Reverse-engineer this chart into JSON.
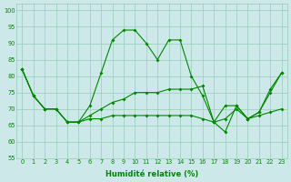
{
  "title": "",
  "xlabel": "Humidité relative (%)",
  "ylabel": "",
  "xlim": [
    -0.5,
    23.5
  ],
  "ylim": [
    55,
    102
  ],
  "yticks": [
    55,
    60,
    65,
    70,
    75,
    80,
    85,
    90,
    95,
    100
  ],
  "xticks": [
    0,
    1,
    2,
    3,
    4,
    5,
    6,
    7,
    8,
    9,
    10,
    11,
    12,
    13,
    14,
    15,
    16,
    17,
    18,
    19,
    20,
    21,
    22,
    23
  ],
  "background_color": "#cce8e8",
  "grid_color": "#99ccbb",
  "line_color": "#008800",
  "line1": [
    82,
    74,
    70,
    70,
    66,
    66,
    71,
    81,
    91,
    94,
    94,
    90,
    85,
    91,
    91,
    80,
    74,
    66,
    63,
    71,
    67,
    69,
    75,
    81
  ],
  "line2": [
    82,
    74,
    70,
    70,
    66,
    66,
    68,
    70,
    72,
    73,
    75,
    75,
    75,
    76,
    76,
    76,
    77,
    66,
    71,
    71,
    67,
    69,
    76,
    81
  ],
  "line3": [
    82,
    74,
    70,
    70,
    66,
    66,
    67,
    67,
    68,
    68,
    68,
    68,
    68,
    68,
    68,
    68,
    67,
    66,
    67,
    70,
    67,
    68,
    69,
    70
  ]
}
